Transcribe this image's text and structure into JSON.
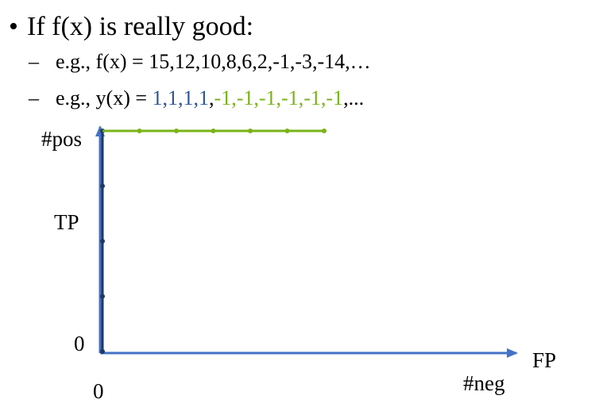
{
  "bullet": {
    "marker": "•",
    "text": "If f(x) is really good:"
  },
  "sub_items": [
    {
      "dash": "–",
      "prefix": "e.g., f(x) = ",
      "sequence_text": "15,12,10,8,6,2,-1,-3,-14,…"
    },
    {
      "dash": "–",
      "prefix": "e.g., y(x) = ",
      "sequence": [
        "1",
        "1",
        "1",
        "1",
        "-1",
        "-1",
        "-1",
        "-1",
        "-1",
        "-1"
      ],
      "suffix": ",...",
      "positive_value": "1",
      "colors": {
        "positive": "#2F5597",
        "negative": "#7AB317"
      }
    }
  ],
  "diagram": {
    "y_top_label": "#pos",
    "y_mid_label": "TP",
    "y_zero_label": "0",
    "x_zero_label": "0",
    "x_axis_label": "FP",
    "x_end_label": "#neg",
    "colors": {
      "axis": "#4472C4",
      "tp_segment": "#1F3864",
      "fp_segment": "#7AB317"
    },
    "curve": {
      "tp_points": [
        0,
        1,
        2,
        3,
        4
      ],
      "fp_points": [
        0,
        1,
        2,
        3,
        4,
        5,
        6
      ],
      "max_tp": 4
    }
  }
}
